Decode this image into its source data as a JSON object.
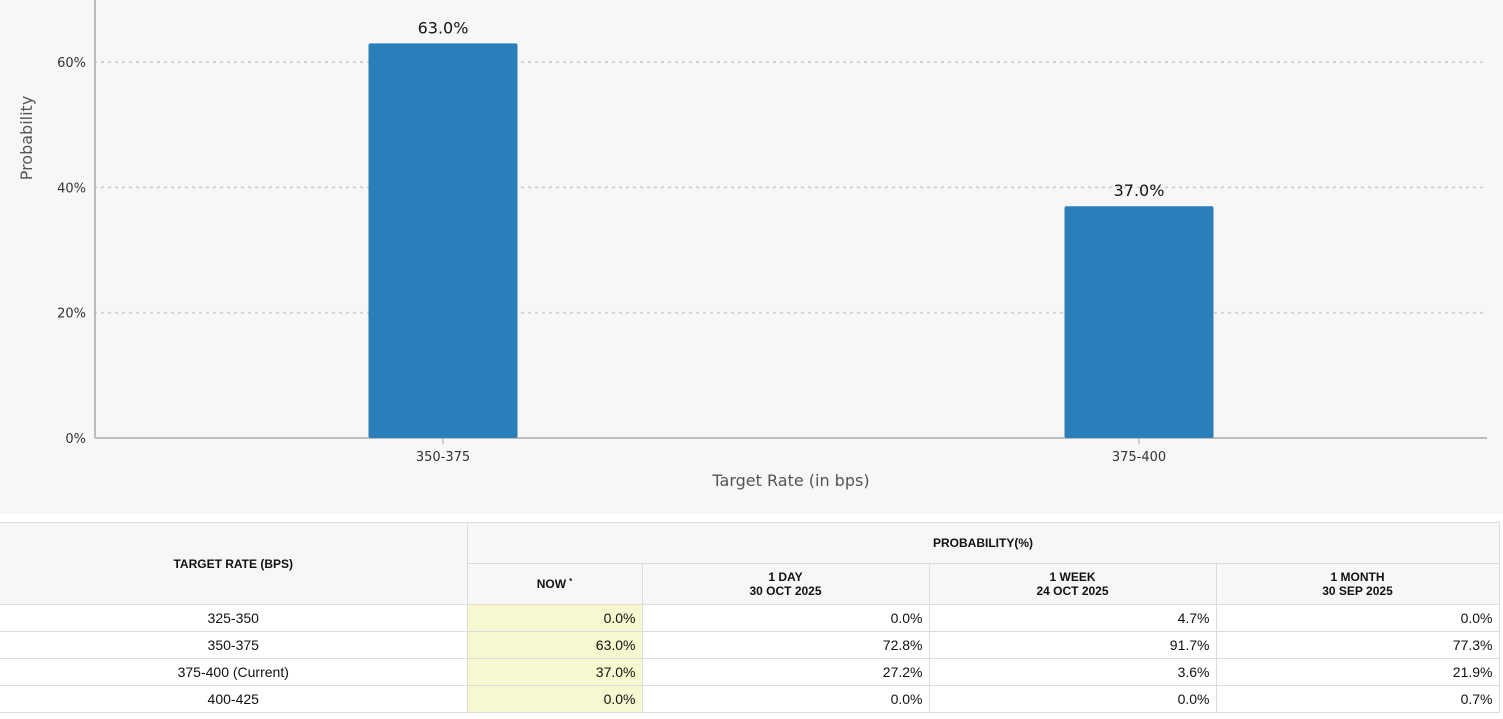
{
  "chart_data": {
    "type": "bar",
    "categories": [
      "350-375",
      "375-400"
    ],
    "values": [
      63.0,
      37.0
    ],
    "value_labels": [
      "63.0%",
      "37.0%"
    ],
    "xlabel": "Target Rate (in bps)",
    "ylabel": "Probability",
    "ylim": [
      0,
      70
    ],
    "yticks": [
      0,
      20,
      40,
      60
    ],
    "ytick_labels": [
      "0%",
      "20%",
      "40%",
      "60%"
    ],
    "grid": true,
    "bar_color": "#2a7fba"
  },
  "table": {
    "rate_header": "TARGET RATE (BPS)",
    "probability_header": "PROBABILITY(%)",
    "columns": [
      {
        "line1": "NOW",
        "line2": "",
        "marker": "*"
      },
      {
        "line1": "1 DAY",
        "line2": "30 OCT 2025",
        "marker": ""
      },
      {
        "line1": "1 WEEK",
        "line2": "24 OCT 2025",
        "marker": ""
      },
      {
        "line1": "1 MONTH",
        "line2": "30 SEP 2025",
        "marker": ""
      }
    ],
    "rows": [
      {
        "rate": "325-350",
        "values": [
          "0.0%",
          "0.0%",
          "4.7%",
          "0.0%"
        ]
      },
      {
        "rate": "350-375",
        "values": [
          "63.0%",
          "72.8%",
          "91.7%",
          "77.3%"
        ]
      },
      {
        "rate": "375-400 (Current)",
        "values": [
          "37.0%",
          "27.2%",
          "3.6%",
          "21.9%"
        ]
      },
      {
        "rate": "400-425",
        "values": [
          "0.0%",
          "0.0%",
          "0.0%",
          "0.7%"
        ]
      }
    ],
    "now_highlight_color": "#f8f8d0"
  }
}
